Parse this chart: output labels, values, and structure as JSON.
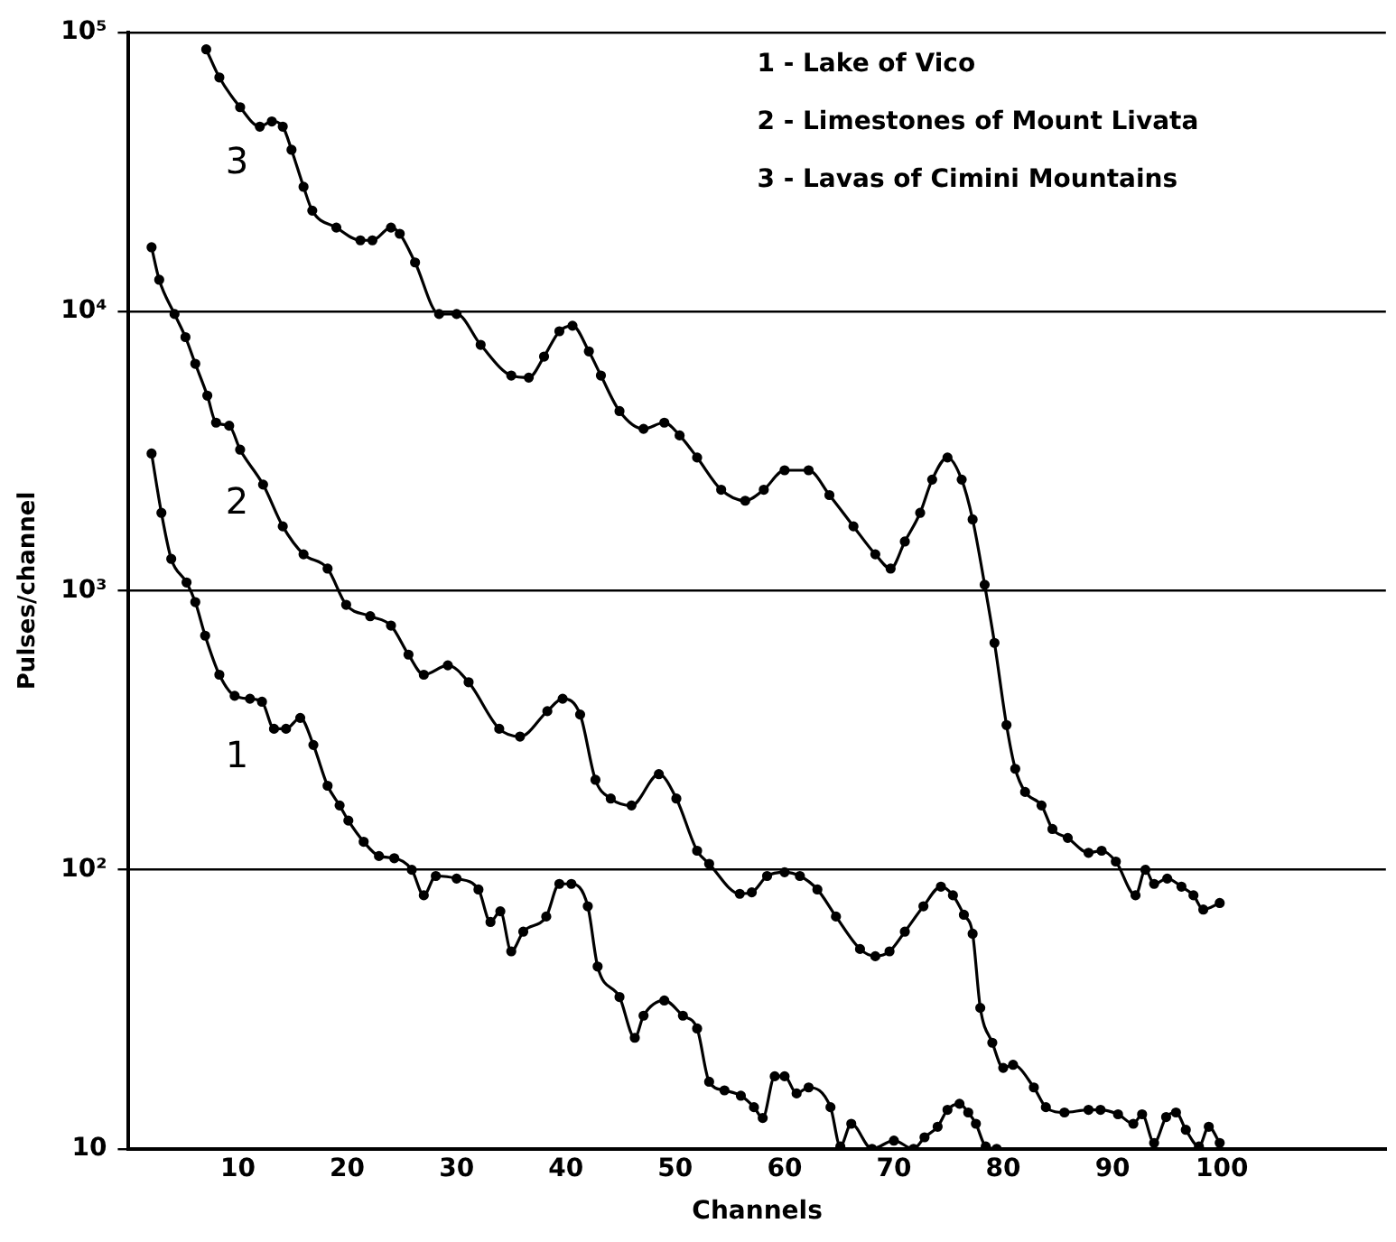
{
  "chart_data": {
    "type": "line",
    "xlabel": "Channels",
    "ylabel": "Pulses/channel",
    "xlim": [
      0,
      115
    ],
    "xticks": [
      10,
      20,
      30,
      40,
      50,
      60,
      70,
      80,
      90,
      100
    ],
    "ylim": [
      10,
      100000
    ],
    "yticks": [
      10,
      {
        "value": 100,
        "label": "10²"
      },
      {
        "value": 1000,
        "label": "10³"
      },
      {
        "value": 10000,
        "label": "10⁴"
      },
      {
        "value": 100000,
        "label": "10⁵"
      }
    ],
    "log": "y",
    "grid": "y",
    "legend": false,
    "marker": "circle",
    "line_style": "solid",
    "annotations": [
      "1 - Lake of Vico",
      "2 - Limestones of Mount Livata",
      "3 - Lavas of Cimini Mountains"
    ],
    "series": [
      {
        "name": "1",
        "color": "#000000",
        "x": [
          2.1,
          3,
          3.9,
          5.3,
          6.1,
          7,
          8.3,
          9.7,
          11.1,
          12.2,
          13.3,
          14.4,
          15.7,
          16.9,
          18.2,
          19.3,
          20.1,
          21.5,
          22.9,
          24.3,
          25.9,
          27,
          28.1,
          30,
          32,
          33.1,
          34,
          35,
          36.1,
          38.2,
          39.4,
          40.5,
          42,
          42.9,
          44.9,
          46.3,
          47.1,
          49,
          50.7,
          52,
          53.1,
          54.5,
          56,
          57.2,
          58,
          59.1,
          60,
          61.1,
          62.2,
          64.2,
          65.1,
          66.1,
          68,
          70,
          71.8,
          72.8,
          74,
          74.9,
          76,
          76.8,
          77.5,
          78.4,
          79.4
        ],
        "values": [
          3100,
          1900,
          1300,
          1070,
          910,
          690,
          500,
          420,
          410,
          400,
          320,
          320,
          350,
          280,
          200,
          170,
          150,
          126,
          112,
          110,
          100,
          81,
          95,
          93,
          85,
          65,
          71,
          51,
          60,
          68,
          89,
          89,
          74,
          45,
          35,
          25,
          30,
          34,
          30,
          27,
          17.4,
          16.2,
          15.5,
          14.1,
          12.9,
          18.2,
          18.2,
          15.8,
          16.6,
          14.1,
          10.2,
          12.3,
          10,
          10.7,
          10,
          11,
          12,
          13.8,
          14.5,
          13.5,
          12.3,
          10.2,
          10
        ]
      },
      {
        "name": "2",
        "color": "#000000",
        "x": [
          2.1,
          2.8,
          4.2,
          5.2,
          6.1,
          7.2,
          8,
          9.2,
          10.2,
          12.3,
          14.1,
          16,
          18.2,
          19.9,
          22.1,
          24,
          25.6,
          27,
          29.2,
          31.1,
          33.9,
          35.8,
          38.3,
          39.7,
          41.3,
          42.7,
          44.1,
          46,
          48.5,
          50.1,
          52,
          53.1,
          55.9,
          57,
          58.4,
          60,
          61.4,
          63,
          64.7,
          66.9,
          68.3,
          69.6,
          71,
          72.7,
          74.3,
          75.4,
          76.4,
          77.2,
          77.9,
          79,
          80,
          80.9,
          82.8,
          83.9,
          85.6,
          87.8,
          88.9,
          90.5,
          91.9,
          92.7,
          93.8,
          94.9,
          95.8,
          96.7,
          97.9,
          98.8,
          99.8
        ],
        "values": [
          17000,
          13000,
          9800,
          8100,
          6500,
          5000,
          4000,
          3900,
          3200,
          2400,
          1700,
          1350,
          1200,
          890,
          810,
          750,
          590,
          500,
          540,
          470,
          320,
          300,
          370,
          410,
          360,
          210,
          180,
          170,
          220,
          180,
          117,
          105,
          82,
          83,
          95,
          98,
          95,
          85,
          68,
          52,
          49,
          51,
          60,
          74,
          87,
          81,
          69,
          59,
          32,
          24,
          19.5,
          20,
          16.6,
          14.1,
          13.5,
          13.8,
          13.8,
          13.3,
          12.3,
          13.3,
          10.5,
          13,
          13.5,
          11.7,
          10.2,
          12,
          10.5
        ]
      },
      {
        "name": "3",
        "color": "#000000",
        "x": [
          7.1,
          8.3,
          10.2,
          12,
          13.1,
          14.1,
          14.9,
          16,
          16.8,
          19,
          21.2,
          22.3,
          24,
          24.8,
          26.2,
          28.4,
          30,
          32.2,
          35,
          36.6,
          38,
          39.4,
          40.6,
          42.1,
          43.2,
          44.9,
          47.1,
          49,
          50.4,
          52,
          54.2,
          56.4,
          58.1,
          60,
          62.2,
          64.1,
          66.3,
          68.3,
          69.7,
          71,
          72.4,
          73.5,
          74.9,
          76.2,
          77.2,
          78.3,
          79.2,
          80.3,
          81.1,
          82,
          83.5,
          84.5,
          85.9,
          87.8,
          89,
          90.3,
          92.1,
          93,
          93.8,
          95,
          96.3,
          97.4,
          98.3,
          99.8
        ],
        "values": [
          87000,
          69000,
          54000,
          46000,
          48000,
          46000,
          38000,
          28000,
          23000,
          20000,
          18000,
          18000,
          20000,
          19000,
          15000,
          9800,
          9800,
          7600,
          5900,
          5800,
          6900,
          8500,
          8900,
          7200,
          5900,
          4400,
          3800,
          4000,
          3600,
          3000,
          2300,
          2100,
          2300,
          2700,
          2700,
          2200,
          1700,
          1350,
          1200,
          1500,
          1900,
          2500,
          3000,
          2500,
          1800,
          1050,
          650,
          330,
          230,
          190,
          170,
          140,
          130,
          115,
          117,
          107,
          81,
          100,
          89,
          93,
          87,
          81,
          72,
          76
        ]
      }
    ]
  }
}
